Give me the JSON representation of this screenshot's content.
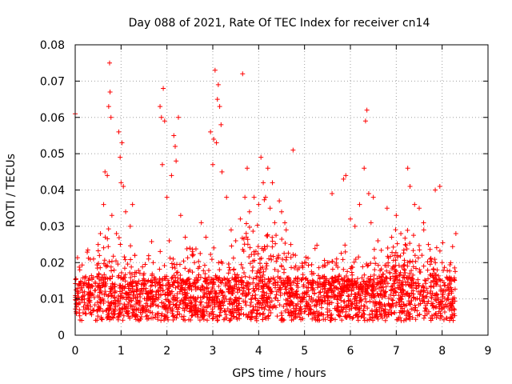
{
  "chart_data": {
    "type": "scatter",
    "title": "Day 088 of 2021, Rate Of TEC Index for receiver cn14",
    "xlabel": "GPS time / hours",
    "ylabel": "ROTI / TECUs",
    "xlim": [
      0,
      9
    ],
    "ylim": [
      0,
      0.08
    ],
    "xticks": [
      "0",
      "1",
      "2",
      "3",
      "4",
      "5",
      "6",
      "7",
      "8",
      "9"
    ],
    "yticks": [
      "0",
      "0.01",
      "0.02",
      "0.03",
      "0.04",
      "0.05",
      "0.06",
      "0.07",
      "0.08"
    ],
    "grid": true,
    "marker": "+",
    "color": "#ff0000",
    "data_span_hours": [
      0,
      8.3
    ],
    "series": [
      {
        "name": "ROTI",
        "points": [
          [
            0.0,
            0.061
          ],
          [
            0.05,
            0.012
          ],
          [
            0.1,
            0.018
          ],
          [
            0.2,
            0.009
          ],
          [
            0.3,
            0.014
          ],
          [
            0.4,
            0.021
          ],
          [
            0.5,
            0.025
          ],
          [
            0.55,
            0.028
          ],
          [
            0.62,
            0.036
          ],
          [
            0.65,
            0.045
          ],
          [
            0.7,
            0.044
          ],
          [
            0.73,
            0.063
          ],
          [
            0.75,
            0.075
          ],
          [
            0.76,
            0.067
          ],
          [
            0.78,
            0.06
          ],
          [
            0.8,
            0.033
          ],
          [
            0.9,
            0.028
          ],
          [
            0.95,
            0.056
          ],
          [
            0.98,
            0.049
          ],
          [
            1.0,
            0.042
          ],
          [
            1.02,
            0.053
          ],
          [
            1.05,
            0.041
          ],
          [
            1.1,
            0.034
          ],
          [
            1.2,
            0.03
          ],
          [
            1.25,
            0.036
          ],
          [
            1.3,
            0.022
          ],
          [
            1.5,
            0.017
          ],
          [
            1.6,
            0.021
          ],
          [
            1.7,
            0.02
          ],
          [
            1.85,
            0.063
          ],
          [
            1.88,
            0.06
          ],
          [
            1.9,
            0.047
          ],
          [
            1.92,
            0.068
          ],
          [
            1.95,
            0.059
          ],
          [
            2.0,
            0.038
          ],
          [
            2.05,
            0.026
          ],
          [
            2.1,
            0.044
          ],
          [
            2.15,
            0.055
          ],
          [
            2.18,
            0.052
          ],
          [
            2.2,
            0.048
          ],
          [
            2.25,
            0.06
          ],
          [
            2.3,
            0.033
          ],
          [
            2.4,
            0.027
          ],
          [
            2.5,
            0.024
          ],
          [
            2.6,
            0.02
          ],
          [
            2.75,
            0.031
          ],
          [
            2.85,
            0.027
          ],
          [
            2.95,
            0.056
          ],
          [
            3.0,
            0.047
          ],
          [
            3.02,
            0.054
          ],
          [
            3.05,
            0.073
          ],
          [
            3.08,
            0.053
          ],
          [
            3.1,
            0.065
          ],
          [
            3.12,
            0.069
          ],
          [
            3.15,
            0.063
          ],
          [
            3.18,
            0.058
          ],
          [
            3.2,
            0.045
          ],
          [
            3.3,
            0.038
          ],
          [
            3.4,
            0.029
          ],
          [
            3.5,
            0.026
          ],
          [
            3.6,
            0.032
          ],
          [
            3.65,
            0.072
          ],
          [
            3.7,
            0.038
          ],
          [
            3.75,
            0.046
          ],
          [
            3.8,
            0.034
          ],
          [
            3.9,
            0.038
          ],
          [
            4.0,
            0.036
          ],
          [
            4.05,
            0.049
          ],
          [
            4.1,
            0.042
          ],
          [
            4.15,
            0.038
          ],
          [
            4.2,
            0.046
          ],
          [
            4.25,
            0.035
          ],
          [
            4.3,
            0.042
          ],
          [
            4.35,
            0.031
          ],
          [
            4.45,
            0.037
          ],
          [
            4.5,
            0.034
          ],
          [
            4.6,
            0.029
          ],
          [
            4.7,
            0.025
          ],
          [
            4.75,
            0.051
          ],
          [
            4.8,
            0.022
          ],
          [
            5.0,
            0.02
          ],
          [
            5.2,
            0.017
          ],
          [
            5.4,
            0.019
          ],
          [
            5.5,
            0.02
          ],
          [
            5.6,
            0.039
          ],
          [
            5.7,
            0.021
          ],
          [
            5.85,
            0.043
          ],
          [
            5.9,
            0.044
          ],
          [
            6.0,
            0.032
          ],
          [
            6.1,
            0.03
          ],
          [
            6.2,
            0.036
          ],
          [
            6.3,
            0.046
          ],
          [
            6.33,
            0.059
          ],
          [
            6.36,
            0.062
          ],
          [
            6.4,
            0.039
          ],
          [
            6.45,
            0.031
          ],
          [
            6.5,
            0.038
          ],
          [
            6.6,
            0.026
          ],
          [
            6.8,
            0.035
          ],
          [
            6.9,
            0.027
          ],
          [
            7.0,
            0.033
          ],
          [
            7.1,
            0.028
          ],
          [
            7.25,
            0.046
          ],
          [
            7.3,
            0.041
          ],
          [
            7.4,
            0.036
          ],
          [
            7.5,
            0.035
          ],
          [
            7.6,
            0.029
          ],
          [
            7.7,
            0.025
          ],
          [
            7.85,
            0.04
          ],
          [
            7.95,
            0.041
          ],
          [
            8.0,
            0.02
          ],
          [
            8.1,
            0.016
          ],
          [
            8.2,
            0.012
          ],
          [
            8.3,
            0.028
          ]
        ]
      }
    ]
  }
}
